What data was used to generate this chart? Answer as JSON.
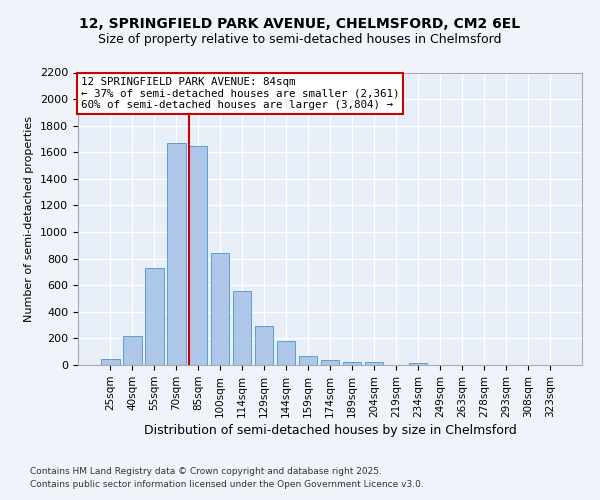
{
  "title1": "12, SPRINGFIELD PARK AVENUE, CHELMSFORD, CM2 6EL",
  "title2": "Size of property relative to semi-detached houses in Chelmsford",
  "xlabel": "Distribution of semi-detached houses by size in Chelmsford",
  "ylabel": "Number of semi-detached properties",
  "categories": [
    "25sqm",
    "40sqm",
    "55sqm",
    "70sqm",
    "85sqm",
    "100sqm",
    "114sqm",
    "129sqm",
    "144sqm",
    "159sqm",
    "174sqm",
    "189sqm",
    "204sqm",
    "219sqm",
    "234sqm",
    "249sqm",
    "263sqm",
    "278sqm",
    "293sqm",
    "308sqm",
    "323sqm"
  ],
  "values": [
    45,
    220,
    730,
    1670,
    1650,
    840,
    560,
    295,
    180,
    70,
    35,
    25,
    20,
    0,
    15,
    0,
    0,
    0,
    0,
    0,
    0
  ],
  "bar_color": "#aec6e8",
  "bar_edge_color": "#5a9fd4",
  "red_line_x": 4,
  "red_line_color": "#cc0000",
  "annotation_line1": "12 SPRINGFIELD PARK AVENUE: 84sqm",
  "annotation_line2": "← 37% of semi-detached houses are smaller (2,361)",
  "annotation_line3": "60% of semi-detached houses are larger (3,804) →",
  "annotation_box_color": "#ffffff",
  "annotation_border_color": "#cc0000",
  "ylim": [
    0,
    2200
  ],
  "yticks": [
    0,
    200,
    400,
    600,
    800,
    1000,
    1200,
    1400,
    1600,
    1800,
    2000,
    2200
  ],
  "footnote1": "Contains HM Land Registry data © Crown copyright and database right 2025.",
  "footnote2": "Contains public sector information licensed under the Open Government Licence v3.0.",
  "bg_color": "#f0f4fa",
  "plot_bg_color": "#e8eef8",
  "title1_fontsize": 10,
  "title2_fontsize": 9
}
